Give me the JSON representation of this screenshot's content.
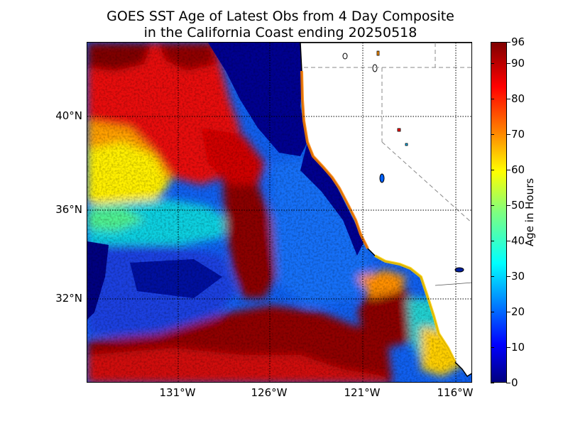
{
  "title_line1": "GOES SST Age of Latest Obs from 4 Day Composite",
  "title_line2": "in the California Coast ending 20250518",
  "map": {
    "lat_labels": [
      "40°N",
      "36°N",
      "32°N"
    ],
    "lon_labels": [
      "131°W",
      "126°W",
      "121°W",
      "116°W"
    ]
  },
  "colorbar": {
    "label": "Age in Hours",
    "ticks": [
      "0",
      "10",
      "20",
      "30",
      "40",
      "50",
      "60",
      "70",
      "80",
      "90",
      "96"
    ],
    "colormap": "jet",
    "range": [
      0,
      96
    ]
  },
  "colors": {
    "land": "#ffffff",
    "fresh": "#00007f",
    "old": "#7f0000"
  }
}
